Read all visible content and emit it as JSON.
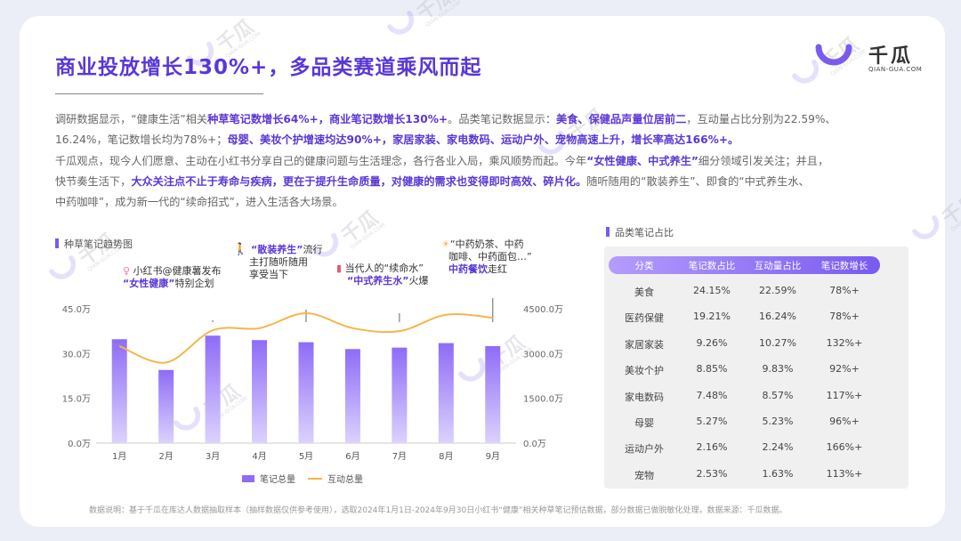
{
  "header": {
    "title": "商业投放增长130%+，多品类赛道乘风而起",
    "logo_text": "千瓜",
    "logo_sub": "QIAN-GUA.COM"
  },
  "paragraphs": {
    "p1_a": "调研数据显示，“健康生活”相关",
    "p1_b": "种草笔记数增长64%+，商业笔记数增长130%+",
    "p1_c": "。品类笔记数据显示：",
    "p1_d": "美食、保健品声量位居前二",
    "p1_e": "，互动量占比分别为22.59%、",
    "p2_a": "16.24%，笔记数增长均为78%+；",
    "p2_b": "母婴、美妆个护增速均达90%+，家居家装、家电数码、运动户外、宠物高速上升，增长率高达166%+。",
    "p3": "千瓜观点，现今人们愿意、主动在小红书分享自己的健康问题与生活理念，各行各业入局，乘风顺势而起。今年",
    "p3_b": "“女性健康、中式养生”",
    "p3_c": "细分领域引发关注；并且，",
    "p4_a": "快节奏生活下，",
    "p4_b": "大众关注点不止于寿命与疾病，更在于提升生命质量，对健康的需求也变得即时高效、碎片化。",
    "p4_c": "随听随用的“散装养生”、即食的“中式养生水、",
    "p5": "中药咖啡”，成为新一代的“续命招式”，进入生活各大场景。"
  },
  "chart_section_title": "种草笔记趋势图",
  "table_section_title": "品类笔记占比",
  "annotations": {
    "a1_l1": "小红书@健康薯发布",
    "a1_l2_b": "“女性健康”",
    "a1_l2": "特别企划",
    "a2_l1_b": "“散装养生”",
    "a2_l1": "流行",
    "a2_l2": "主打随听随用",
    "a2_l3": "享受当下",
    "a3_l1": "当代人的“续命水”",
    "a3_l2_b": "“中式养生水”",
    "a3_l2": "火爆",
    "a4_l1": "“中药奶茶、中药",
    "a4_l2": "咖啡、中药面包…”",
    "a4_l3_b": "中药餐饮",
    "a4_l3": "走红"
  },
  "chart_data": {
    "type": "bar",
    "categories": [
      "1月",
      "2月",
      "3月",
      "4月",
      "5月",
      "6月",
      "7月",
      "8月",
      "9月"
    ],
    "series": [
      {
        "name": "笔记总量",
        "type": "bar",
        "axis": "left",
        "values": [
          34.8,
          24.5,
          36.0,
          34.5,
          33.8,
          31.5,
          32.0,
          33.5,
          32.5
        ]
      },
      {
        "name": "互动总量",
        "type": "line",
        "axis": "right",
        "values": [
          3250,
          2700,
          3780,
          3850,
          4350,
          3850,
          3750,
          4300,
          4200
        ]
      }
    ],
    "y_left": {
      "ticks": [
        "0.0万",
        "15.0万",
        "30.0万",
        "45.0万"
      ],
      "range": [
        0,
        45
      ]
    },
    "y_right": {
      "ticks": [
        "0.0万",
        "1500.0万",
        "3000.0万",
        "4500.0万"
      ],
      "range": [
        0,
        4500
      ]
    },
    "legend_position": "bottom",
    "colors": {
      "bar_top": "#8e6cf7",
      "bar_bottom": "#dcd2fd",
      "line": "#f5b64a"
    }
  },
  "table": {
    "headers": [
      "分类",
      "笔记数占比",
      "互动量占比",
      "笔记数增长"
    ],
    "rows": [
      [
        "美食",
        "24.15%",
        "22.59%",
        "78%+"
      ],
      [
        "医药保健",
        "19.21%",
        "16.24%",
        "78%+"
      ],
      [
        "家居家装",
        "9.26%",
        "10.27%",
        "132%+"
      ],
      [
        "美妆个护",
        "8.85%",
        "9.83%",
        "92%+"
      ],
      [
        "家电数码",
        "7.48%",
        "8.57%",
        "117%+"
      ],
      [
        "母婴",
        "5.27%",
        "5.23%",
        "96%+"
      ],
      [
        "运动户外",
        "2.16%",
        "2.24%",
        "166%+"
      ],
      [
        "宠物",
        "2.53%",
        "1.63%",
        "113%+"
      ]
    ]
  },
  "footer": "数据说明：基于千瓜在库达人数据抽取样本（抽样数据仅供参考使用），选取2024年1月1日-2024年9月30日小红书“健康”相关种草笔记预估数据，部分数据已做脱敏化处理，数据来源：千瓜数据。",
  "watermark": {
    "text": "千瓜",
    "sub": "QIAN-GUA.COM"
  },
  "colors": {
    "accent": "#5a37d6",
    "purple_light": "#b49cfb",
    "orange": "#f5b64a"
  }
}
